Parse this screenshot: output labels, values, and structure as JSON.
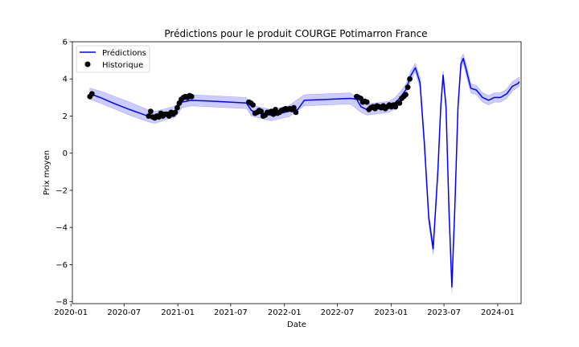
{
  "chart_data": {
    "type": "line",
    "title": "Prédictions pour le produit COURGE Potimarron France",
    "xlabel": "Date",
    "ylabel": "Prix moyen",
    "ylim": [
      -8.1,
      6
    ],
    "xlim": [
      "2020-01-06",
      "2024-03-21"
    ],
    "yticks": [
      6,
      4,
      2,
      0,
      -2,
      -4,
      -6,
      -8
    ],
    "ytick_labels": [
      "6",
      "4",
      "2",
      "0",
      "−2",
      "−4",
      "−6",
      "−8"
    ],
    "xticks": [
      "2020-01-01",
      "2020-07-01",
      "2021-01-01",
      "2021-07-01",
      "2022-01-01",
      "2022-07-01",
      "2023-01-01",
      "2023-07-01",
      "2024-01-01"
    ],
    "xtick_labels": [
      "2020-01",
      "2020-07",
      "2021-01",
      "2021-07",
      "2022-01",
      "2022-07",
      "2023-01",
      "2023-07",
      "2024-01"
    ],
    "grid": false,
    "legend": {
      "position": "top-left"
    },
    "colors": {
      "prediction": "#0000ff",
      "band": "#0000ff",
      "history": "#000000"
    },
    "series": [
      {
        "name": "Prédictions",
        "kind": "line",
        "points": [
          [
            "2020-03-06",
            3.2
          ],
          [
            "2020-04-10",
            3.0
          ],
          [
            "2020-06-01",
            2.65
          ],
          [
            "2020-07-20",
            2.35
          ],
          [
            "2020-09-20",
            2.0
          ],
          [
            "2020-10-15",
            1.9
          ],
          [
            "2020-11-01",
            2.05
          ],
          [
            "2020-11-20",
            2.1
          ],
          [
            "2020-12-10",
            2.1
          ],
          [
            "2020-12-25",
            2.25
          ],
          [
            "2021-01-05",
            2.55
          ],
          [
            "2021-01-15",
            2.75
          ],
          [
            "2021-02-15",
            2.85
          ],
          [
            "2021-05-01",
            2.8
          ],
          [
            "2021-08-24",
            2.7
          ],
          [
            "2021-09-10",
            2.3
          ],
          [
            "2021-10-01",
            2.15
          ],
          [
            "2021-11-15",
            2.05
          ],
          [
            "2021-12-20",
            2.15
          ],
          [
            "2022-01-15",
            2.25
          ],
          [
            "2022-02-15",
            2.35
          ],
          [
            "2022-03-10",
            2.85
          ],
          [
            "2022-05-01",
            2.88
          ],
          [
            "2022-08-15",
            2.95
          ],
          [
            "2022-09-05",
            2.9
          ],
          [
            "2022-09-20",
            2.5
          ],
          [
            "2022-10-10",
            2.35
          ],
          [
            "2022-11-01",
            2.4
          ],
          [
            "2022-12-01",
            2.45
          ],
          [
            "2022-12-25",
            2.5
          ],
          [
            "2023-01-15",
            2.7
          ],
          [
            "2023-02-01",
            3.0
          ],
          [
            "2023-02-20",
            3.4
          ],
          [
            "2023-03-10",
            4.2
          ],
          [
            "2023-03-25",
            4.6
          ],
          [
            "2023-04-10",
            3.8
          ],
          [
            "2023-04-25",
            0.5
          ],
          [
            "2023-05-10",
            -3.5
          ],
          [
            "2023-05-25",
            -5.15
          ],
          [
            "2023-06-10",
            -1.0
          ],
          [
            "2023-06-20",
            2.5
          ],
          [
            "2023-06-28",
            4.2
          ],
          [
            "2023-07-08",
            2.5
          ],
          [
            "2023-07-18",
            -3.0
          ],
          [
            "2023-07-28",
            -7.2
          ],
          [
            "2023-08-07",
            -3.0
          ],
          [
            "2023-08-18",
            2.5
          ],
          [
            "2023-08-28",
            4.8
          ],
          [
            "2023-09-05",
            5.1
          ],
          [
            "2023-09-15",
            4.5
          ],
          [
            "2023-10-01",
            3.5
          ],
          [
            "2023-10-20",
            3.4
          ],
          [
            "2023-11-10",
            3.0
          ],
          [
            "2023-12-01",
            2.85
          ],
          [
            "2023-12-20",
            3.0
          ],
          [
            "2024-01-10",
            3.0
          ],
          [
            "2024-02-01",
            3.2
          ],
          [
            "2024-02-20",
            3.6
          ],
          [
            "2024-03-10",
            3.75
          ],
          [
            "2024-03-15",
            3.85
          ]
        ]
      },
      {
        "name": "Historique",
        "kind": "scatter",
        "points": [
          [
            "2020-03-06",
            3.05
          ],
          [
            "2020-03-13",
            3.2
          ],
          [
            "2020-09-23",
            2.0
          ],
          [
            "2020-09-30",
            2.25
          ],
          [
            "2020-10-07",
            1.95
          ],
          [
            "2020-10-14",
            1.9
          ],
          [
            "2020-10-21",
            2.0
          ],
          [
            "2020-10-28",
            1.95
          ],
          [
            "2020-11-04",
            2.15
          ],
          [
            "2020-11-11",
            2.0
          ],
          [
            "2020-11-18",
            2.1
          ],
          [
            "2020-11-25",
            2.1
          ],
          [
            "2020-12-02",
            2.0
          ],
          [
            "2020-12-09",
            2.2
          ],
          [
            "2020-12-16",
            2.1
          ],
          [
            "2020-12-23",
            2.2
          ],
          [
            "2020-12-30",
            2.45
          ],
          [
            "2021-01-06",
            2.7
          ],
          [
            "2021-01-13",
            2.9
          ],
          [
            "2021-01-20",
            3.0
          ],
          [
            "2021-01-27",
            3.05
          ],
          [
            "2021-02-03",
            3.0
          ],
          [
            "2021-02-10",
            3.1
          ],
          [
            "2021-02-17",
            3.05
          ],
          [
            "2021-09-01",
            2.75
          ],
          [
            "2021-09-08",
            2.7
          ],
          [
            "2021-09-15",
            2.6
          ],
          [
            "2021-09-22",
            2.15
          ],
          [
            "2021-09-29",
            2.2
          ],
          [
            "2021-10-06",
            2.3
          ],
          [
            "2021-10-13",
            2.25
          ],
          [
            "2021-10-20",
            2.0
          ],
          [
            "2021-10-27",
            2.05
          ],
          [
            "2021-11-03",
            2.2
          ],
          [
            "2021-11-10",
            2.2
          ],
          [
            "2021-11-17",
            2.25
          ],
          [
            "2021-11-24",
            2.1
          ],
          [
            "2021-12-01",
            2.35
          ],
          [
            "2021-12-08",
            2.15
          ],
          [
            "2021-12-15",
            2.2
          ],
          [
            "2021-12-22",
            2.3
          ],
          [
            "2021-12-29",
            2.35
          ],
          [
            "2022-01-05",
            2.4
          ],
          [
            "2022-01-12",
            2.35
          ],
          [
            "2022-01-19",
            2.4
          ],
          [
            "2022-01-26",
            2.35
          ],
          [
            "2022-02-02",
            2.45
          ],
          [
            "2022-02-09",
            2.2
          ],
          [
            "2022-09-05",
            3.05
          ],
          [
            "2022-09-12",
            3.0
          ],
          [
            "2022-09-19",
            2.95
          ],
          [
            "2022-09-26",
            2.75
          ],
          [
            "2022-10-03",
            2.8
          ],
          [
            "2022-10-10",
            2.75
          ],
          [
            "2022-10-17",
            2.35
          ],
          [
            "2022-10-24",
            2.45
          ],
          [
            "2022-10-31",
            2.5
          ],
          [
            "2022-11-07",
            2.4
          ],
          [
            "2022-11-14",
            2.55
          ],
          [
            "2022-11-21",
            2.5
          ],
          [
            "2022-11-28",
            2.45
          ],
          [
            "2022-12-05",
            2.55
          ],
          [
            "2022-12-12",
            2.4
          ],
          [
            "2022-12-19",
            2.5
          ],
          [
            "2022-12-26",
            2.6
          ],
          [
            "2023-01-02",
            2.5
          ],
          [
            "2023-01-09",
            2.6
          ],
          [
            "2023-01-16",
            2.5
          ],
          [
            "2023-01-23",
            2.7
          ],
          [
            "2023-01-30",
            2.7
          ],
          [
            "2023-02-06",
            2.95
          ],
          [
            "2023-02-13",
            3.05
          ],
          [
            "2023-02-20",
            3.15
          ],
          [
            "2023-02-27",
            3.55
          ],
          [
            "2023-03-06",
            4.0
          ]
        ]
      }
    ],
    "band": {
      "name": "",
      "upper": [
        [
          "2020-03-06",
          3.5
        ],
        [
          "2020-04-10",
          3.35
        ],
        [
          "2020-07-20",
          2.75
        ],
        [
          "2020-09-20",
          2.35
        ],
        [
          "2020-10-15",
          2.25
        ],
        [
          "2020-11-20",
          2.4
        ],
        [
          "2020-12-25",
          2.55
        ],
        [
          "2021-01-15",
          3.05
        ],
        [
          "2021-02-15",
          3.15
        ],
        [
          "2021-08-24",
          3.0
        ],
        [
          "2021-09-10",
          2.6
        ],
        [
          "2021-11-15",
          2.35
        ],
        [
          "2022-01-15",
          2.55
        ],
        [
          "2022-03-10",
          3.15
        ],
        [
          "2022-08-15",
          3.25
        ],
        [
          "2022-09-20",
          2.8
        ],
        [
          "2022-10-10",
          2.65
        ],
        [
          "2022-12-25",
          2.8
        ],
        [
          "2023-01-15",
          3.0
        ],
        [
          "2023-02-01",
          3.3
        ],
        [
          "2023-02-20",
          3.7
        ],
        [
          "2023-03-10",
          4.45
        ],
        [
          "2023-03-25",
          4.85
        ],
        [
          "2023-04-10",
          4.1
        ],
        [
          "2023-04-25",
          0.85
        ],
        [
          "2023-05-10",
          -3.2
        ],
        [
          "2023-05-25",
          -4.85
        ],
        [
          "2023-06-10",
          -0.7
        ],
        [
          "2023-06-20",
          2.8
        ],
        [
          "2023-06-28",
          4.45
        ],
        [
          "2023-07-08",
          2.8
        ],
        [
          "2023-07-18",
          -2.7
        ],
        [
          "2023-07-28",
          -6.9
        ],
        [
          "2023-08-07",
          -2.7
        ],
        [
          "2023-08-18",
          2.8
        ],
        [
          "2023-08-28",
          5.1
        ],
        [
          "2023-09-05",
          5.35
        ],
        [
          "2023-09-15",
          4.8
        ],
        [
          "2023-10-01",
          3.75
        ],
        [
          "2023-10-20",
          3.65
        ],
        [
          "2023-11-10",
          3.25
        ],
        [
          "2023-12-01",
          3.1
        ],
        [
          "2023-12-20",
          3.25
        ],
        [
          "2024-01-10",
          3.25
        ],
        [
          "2024-02-01",
          3.45
        ],
        [
          "2024-02-20",
          3.85
        ],
        [
          "2024-03-15",
          4.1
        ]
      ],
      "lower": [
        [
          "2020-03-06",
          2.9
        ],
        [
          "2020-04-10",
          2.7
        ],
        [
          "2020-07-20",
          2.05
        ],
        [
          "2020-09-20",
          1.7
        ],
        [
          "2020-10-15",
          1.6
        ],
        [
          "2020-11-20",
          1.8
        ],
        [
          "2020-12-25",
          1.95
        ],
        [
          "2021-01-15",
          2.45
        ],
        [
          "2021-02-15",
          2.55
        ],
        [
          "2021-08-24",
          2.4
        ],
        [
          "2021-09-10",
          2.0
        ],
        [
          "2021-11-15",
          1.75
        ],
        [
          "2022-01-15",
          1.95
        ],
        [
          "2022-03-10",
          2.55
        ],
        [
          "2022-08-15",
          2.65
        ],
        [
          "2022-09-20",
          2.2
        ],
        [
          "2022-10-10",
          2.05
        ],
        [
          "2022-12-25",
          2.2
        ],
        [
          "2023-01-15",
          2.4
        ],
        [
          "2023-02-01",
          2.7
        ],
        [
          "2023-02-20",
          3.1
        ],
        [
          "2023-03-10",
          3.95
        ],
        [
          "2023-03-25",
          4.35
        ],
        [
          "2023-04-10",
          3.5
        ],
        [
          "2023-04-25",
          0.15
        ],
        [
          "2023-05-10",
          -3.8
        ],
        [
          "2023-05-25",
          -5.45
        ],
        [
          "2023-06-10",
          -1.3
        ],
        [
          "2023-06-20",
          2.2
        ],
        [
          "2023-06-28",
          3.95
        ],
        [
          "2023-07-08",
          2.2
        ],
        [
          "2023-07-18",
          -3.3
        ],
        [
          "2023-07-28",
          -7.5
        ],
        [
          "2023-08-07",
          -3.3
        ],
        [
          "2023-08-18",
          2.2
        ],
        [
          "2023-08-28",
          4.5
        ],
        [
          "2023-09-05",
          4.85
        ],
        [
          "2023-09-15",
          4.2
        ],
        [
          "2023-10-01",
          3.25
        ],
        [
          "2023-10-20",
          3.15
        ],
        [
          "2023-11-10",
          2.75
        ],
        [
          "2023-12-01",
          2.6
        ],
        [
          "2023-12-20",
          2.75
        ],
        [
          "2024-01-10",
          2.75
        ],
        [
          "2024-02-01",
          2.95
        ],
        [
          "2024-02-20",
          3.35
        ],
        [
          "2024-03-15",
          3.6
        ]
      ]
    }
  }
}
